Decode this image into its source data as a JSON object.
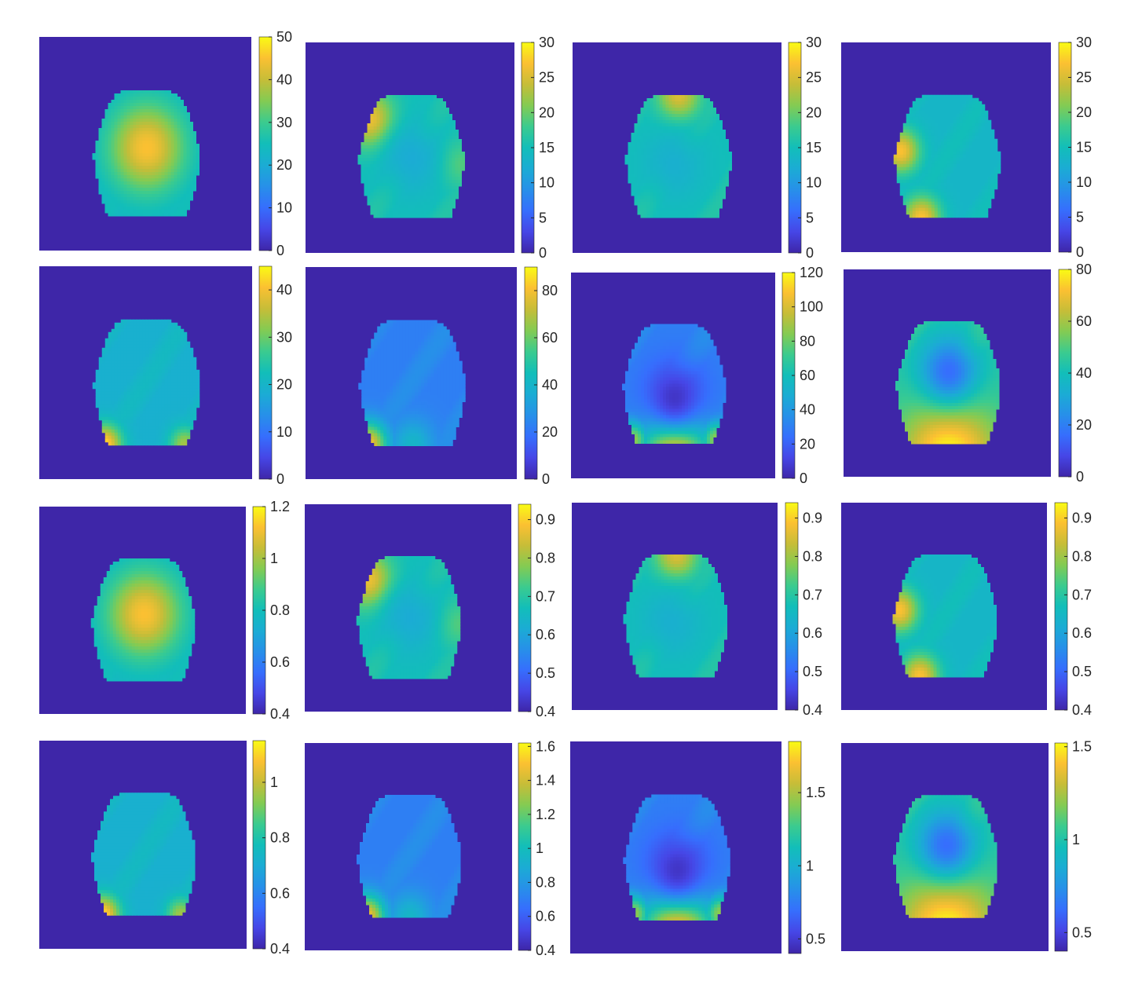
{
  "colors": {
    "background": "#ffffff",
    "axes_fill": "#3e26a8",
    "tick_text": "#262626",
    "colormap": "parula"
  },
  "chart_data": [
    {
      "type": "heatmap",
      "row": 1,
      "col": 1,
      "colorbar_ticks": [
        "0",
        "10",
        "20",
        "30",
        "40",
        "50"
      ],
      "colorbar_range": [
        0,
        50
      ],
      "pattern": "central hot spot"
    },
    {
      "type": "heatmap",
      "row": 1,
      "col": 2,
      "colorbar_ticks": [
        "0",
        "5",
        "10",
        "15",
        "20",
        "25",
        "30"
      ],
      "colorbar_range": [
        0,
        30
      ],
      "pattern": "upper-left hot spot"
    },
    {
      "type": "heatmap",
      "row": 1,
      "col": 3,
      "colorbar_ticks": [
        "0",
        "5",
        "10",
        "15",
        "20",
        "25",
        "30"
      ],
      "colorbar_range": [
        0,
        30
      ],
      "pattern": "top edge hot spot"
    },
    {
      "type": "heatmap",
      "row": 1,
      "col": 4,
      "colorbar_ticks": [
        "0",
        "5",
        "10",
        "15",
        "20",
        "25",
        "30"
      ],
      "colorbar_range": [
        0,
        30
      ],
      "pattern": "left and bottom-left hot spots"
    },
    {
      "type": "heatmap",
      "row": 2,
      "col": 1,
      "colorbar_ticks": [
        "0",
        "10",
        "20",
        "30",
        "40"
      ],
      "colorbar_range": [
        0,
        45
      ],
      "pattern": "bottom corners hot"
    },
    {
      "type": "heatmap",
      "row": 2,
      "col": 2,
      "colorbar_ticks": [
        "0",
        "20",
        "40",
        "60",
        "80"
      ],
      "colorbar_range": [
        0,
        90
      ],
      "pattern": "bottom-left hot"
    },
    {
      "type": "heatmap",
      "row": 2,
      "col": 3,
      "colorbar_ticks": [
        "0",
        "20",
        "40",
        "60",
        "80",
        "100",
        "120"
      ],
      "colorbar_range": [
        0,
        120
      ],
      "pattern": "bottom edge hot"
    },
    {
      "type": "heatmap",
      "row": 2,
      "col": 4,
      "colorbar_ticks": [
        "0",
        "20",
        "40",
        "60",
        "80"
      ],
      "colorbar_range": [
        0,
        80
      ],
      "pattern": "cool center, hot bottom"
    },
    {
      "type": "heatmap",
      "row": 3,
      "col": 1,
      "colorbar_ticks": [
        "0.4",
        "0.6",
        "0.8",
        "1",
        "1.2"
      ],
      "colorbar_range": [
        0.4,
        1.2
      ],
      "pattern": "central hot spot"
    },
    {
      "type": "heatmap",
      "row": 3,
      "col": 2,
      "colorbar_ticks": [
        "0.4",
        "0.5",
        "0.6",
        "0.7",
        "0.8",
        "0.9"
      ],
      "colorbar_range": [
        0.4,
        0.94
      ],
      "pattern": "upper-left hot spot"
    },
    {
      "type": "heatmap",
      "row": 3,
      "col": 3,
      "colorbar_ticks": [
        "0.4",
        "0.5",
        "0.6",
        "0.7",
        "0.8",
        "0.9"
      ],
      "colorbar_range": [
        0.4,
        0.94
      ],
      "pattern": "top edge hot spot"
    },
    {
      "type": "heatmap",
      "row": 3,
      "col": 4,
      "colorbar_ticks": [
        "0.4",
        "0.5",
        "0.6",
        "0.7",
        "0.8",
        "0.9"
      ],
      "colorbar_range": [
        0.4,
        0.94
      ],
      "pattern": "left and bottom-left hot spots"
    },
    {
      "type": "heatmap",
      "row": 4,
      "col": 1,
      "colorbar_ticks": [
        "0.4",
        "0.6",
        "0.8",
        "1"
      ],
      "colorbar_range": [
        0.4,
        1.15
      ],
      "pattern": "bottom corners hot"
    },
    {
      "type": "heatmap",
      "row": 4,
      "col": 2,
      "colorbar_ticks": [
        "0.4",
        "0.6",
        "0.8",
        "1",
        "1.2",
        "1.4",
        "1.6"
      ],
      "colorbar_range": [
        0.4,
        1.62
      ],
      "pattern": "bottom-left hot"
    },
    {
      "type": "heatmap",
      "row": 4,
      "col": 3,
      "colorbar_ticks": [
        "0.5",
        "1",
        "1.5"
      ],
      "colorbar_range": [
        0.4,
        1.85
      ],
      "pattern": "bottom edge hot"
    },
    {
      "type": "heatmap",
      "row": 4,
      "col": 4,
      "colorbar_ticks": [
        "0.5",
        "1",
        "1.5"
      ],
      "colorbar_range": [
        0.4,
        1.52
      ],
      "pattern": "cool center, hot bottom"
    }
  ]
}
